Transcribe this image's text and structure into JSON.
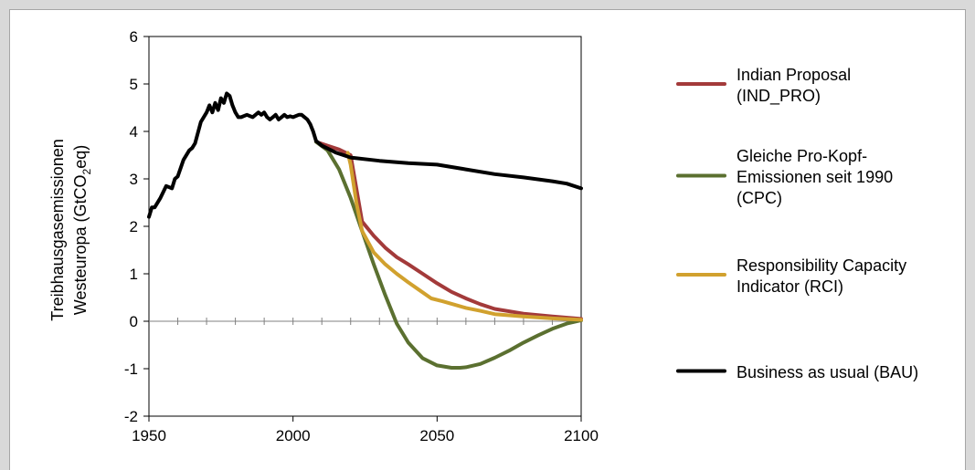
{
  "chart_data": {
    "type": "line",
    "ylabel_line1": "Treibhausgasemissionen",
    "ylabel_line2_prefix": "Westeuropa (GtCO",
    "ylabel_line2_sub": "2",
    "ylabel_line2_suffix": "eq)",
    "xlim": [
      1950,
      2100
    ],
    "ylim": [
      -2,
      6
    ],
    "x_ticks": [
      1950,
      2000,
      2050,
      2100
    ],
    "x_tick_labels": [
      "1950",
      "2000",
      "2050",
      "2100"
    ],
    "y_ticks": [
      -2,
      -1,
      0,
      1,
      2,
      3,
      4,
      5,
      6
    ],
    "y_tick_labels": [
      "-2",
      "-1",
      "0",
      "1",
      "2",
      "3",
      "4",
      "5",
      "6"
    ],
    "grid": false,
    "legend_position": "right",
    "series": [
      {
        "name_lines": [
          "Indian Proposal",
          "(IND_PRO)"
        ],
        "color": "#a33a3a",
        "x": [
          2008,
          2012,
          2016,
          2020,
          2024,
          2028,
          2032,
          2036,
          2040,
          2045,
          2050,
          2055,
          2060,
          2065,
          2070,
          2080,
          2090,
          2100
        ],
        "y": [
          3.78,
          3.7,
          3.62,
          3.5,
          2.1,
          1.8,
          1.55,
          1.35,
          1.2,
          1.0,
          0.8,
          0.62,
          0.48,
          0.36,
          0.26,
          0.16,
          0.1,
          0.05
        ]
      },
      {
        "name_lines": [
          "Gleiche Pro-Kopf-",
          "Emissionen seit 1990",
          "(CPC)"
        ],
        "color": "#5b7030",
        "x": [
          2008,
          2012,
          2016,
          2020,
          2024,
          2028,
          2032,
          2036,
          2040,
          2045,
          2050,
          2055,
          2058,
          2060,
          2065,
          2070,
          2075,
          2080,
          2085,
          2090,
          2095,
          2100
        ],
        "y": [
          3.78,
          3.6,
          3.2,
          2.6,
          1.9,
          1.2,
          0.55,
          -0.05,
          -0.45,
          -0.78,
          -0.93,
          -0.98,
          -0.98,
          -0.97,
          -0.9,
          -0.77,
          -0.62,
          -0.45,
          -0.3,
          -0.16,
          -0.05,
          0.02
        ]
      },
      {
        "name_lines": [
          "Responsibility Capacity",
          "Indicator (RCI)"
        ],
        "color": "#d1a12e",
        "x": [
          2019,
          2020,
          2022,
          2024,
          2028,
          2032,
          2036,
          2040,
          2044,
          2048,
          2052,
          2056,
          2060,
          2065,
          2070,
          2080,
          2090,
          2100
        ],
        "y": [
          3.55,
          3.3,
          2.5,
          1.9,
          1.45,
          1.2,
          1.0,
          0.82,
          0.65,
          0.48,
          0.42,
          0.35,
          0.28,
          0.22,
          0.15,
          0.1,
          0.06,
          0.03
        ]
      },
      {
        "name_lines": [
          "Business as usual (BAU)"
        ],
        "color": "#000000",
        "x": [
          1950,
          1951,
          1952,
          1954,
          1956,
          1958,
          1959,
          1960,
          1962,
          1964,
          1965,
          1966,
          1968,
          1970,
          1971,
          1972,
          1973,
          1974,
          1975,
          1976,
          1977,
          1978,
          1979,
          1980,
          1981,
          1982,
          1984,
          1986,
          1988,
          1989,
          1990,
          1991,
          1992,
          1993,
          1994,
          1995,
          1996,
          1997,
          1998,
          1999,
          2000,
          2002,
          2003,
          2004,
          2005,
          2006,
          2007,
          2008,
          2010,
          2015,
          2020,
          2030,
          2040,
          2050,
          2060,
          2070,
          2080,
          2090,
          2095,
          2100
        ],
        "y": [
          2.2,
          2.4,
          2.4,
          2.6,
          2.85,
          2.8,
          3.0,
          3.05,
          3.4,
          3.6,
          3.65,
          3.75,
          4.2,
          4.4,
          4.55,
          4.4,
          4.6,
          4.45,
          4.7,
          4.6,
          4.8,
          4.75,
          4.55,
          4.4,
          4.3,
          4.3,
          4.35,
          4.3,
          4.4,
          4.35,
          4.4,
          4.3,
          4.25,
          4.3,
          4.35,
          4.25,
          4.3,
          4.35,
          4.3,
          4.32,
          4.3,
          4.35,
          4.35,
          4.3,
          4.25,
          4.15,
          4.0,
          3.8,
          3.7,
          3.55,
          3.45,
          3.38,
          3.33,
          3.3,
          3.2,
          3.1,
          3.03,
          2.95,
          2.9,
          2.8
        ]
      }
    ]
  }
}
